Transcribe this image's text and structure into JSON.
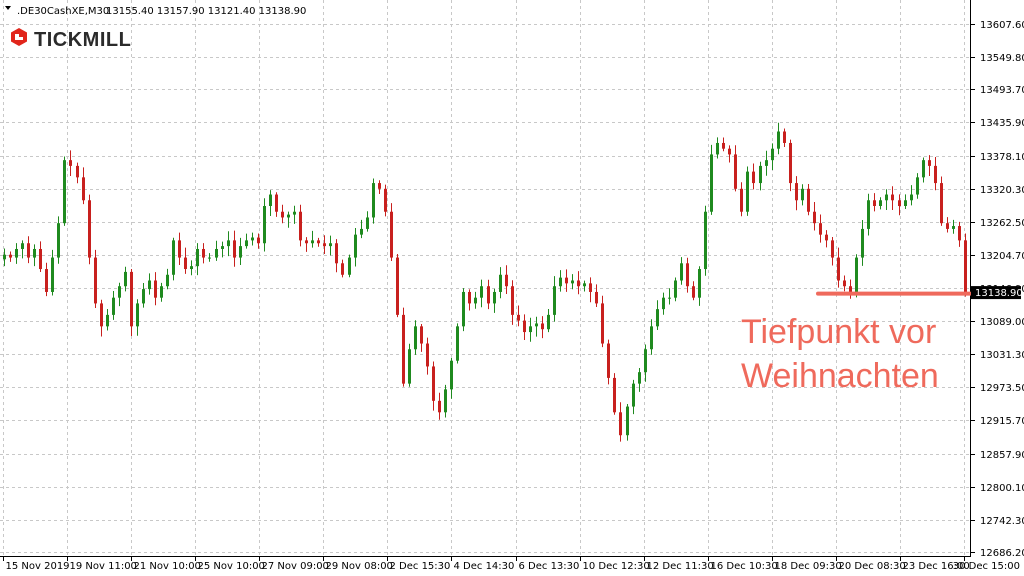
{
  "header": {
    "symbol": ".DE30CashXE,M30",
    "ohlc": "13155.40 13157.90 13121.40 13138.90"
  },
  "brand": {
    "logo_text": "TICKMILL",
    "logo_color": "#e1251b"
  },
  "annotation": {
    "line1": "Tiefpunkt vor",
    "line2": "Weihnachten",
    "color": "#ef6a5c",
    "level": 13138.9
  },
  "current_price": "13138.90",
  "colors": {
    "up": "#1f8a1f",
    "down": "#c8201e",
    "grid": "#c8c8c8",
    "label_bg": "#000000"
  },
  "chart_data": {
    "type": "candlestick",
    "title": "",
    "xlabel": "",
    "ylabel": "",
    "ylim": [
      12686.2,
      13637.0
    ],
    "grid": true,
    "y_ticks": [
      {
        "v": 13607.6,
        "label": "13607.60"
      },
      {
        "v": 13549.8,
        "label": "13549.80"
      },
      {
        "v": 13493.7,
        "label": "13493.70"
      },
      {
        "v": 13435.9,
        "label": "13435.90"
      },
      {
        "v": 13378.1,
        "label": "13378.10"
      },
      {
        "v": 13320.3,
        "label": "13320.30"
      },
      {
        "v": 13262.5,
        "label": "13262.50"
      },
      {
        "v": 13204.7,
        "label": "13204.70"
      },
      {
        "v": 13146.9,
        "label": "13146.90"
      },
      {
        "v": 13089.0,
        "label": "13089.00"
      },
      {
        "v": 13031.3,
        "label": "13031.30"
      },
      {
        "v": 12973.5,
        "label": "12973.50"
      },
      {
        "v": 12915.7,
        "label": "12915.70"
      },
      {
        "v": 12857.9,
        "label": "12857.90"
      },
      {
        "v": 12800.1,
        "label": "12800.10"
      },
      {
        "v": 12742.3,
        "label": "12742.30"
      },
      {
        "v": 12686.2,
        "label": "12686.20"
      }
    ],
    "x_ticks": [
      "15 Nov 2019",
      "19 Nov 11:00",
      "21 Nov 10:00",
      "25 Nov 10:00",
      "27 Nov 09:00",
      "29 Nov 08:00",
      "2 Dec 15:30",
      "4 Dec 14:30",
      "6 Dec 13:30",
      "10 Dec 12:30",
      "12 Dec 11:30",
      "16 Dec 10:30",
      "18 Dec 09:30",
      "20 Dec 08:30",
      "23 Dec 16:00",
      "30 Dec 15:00"
    ],
    "close_path": [
      13205,
      13200,
      13215,
      13225,
      13200,
      13215,
      13180,
      13140,
      13200,
      13260,
      13370,
      13360,
      13340,
      13300,
      13200,
      13120,
      13080,
      13100,
      13130,
      13150,
      13175,
      13080,
      13120,
      13145,
      13160,
      13130,
      13150,
      13170,
      13230,
      13200,
      13180,
      13185,
      13215,
      13200,
      13200,
      13215,
      13220,
      13230,
      13200,
      13220,
      13230,
      13235,
      13225,
      13290,
      13310,
      13280,
      13270,
      13275,
      13280,
      13230,
      13225,
      13230,
      13225,
      13220,
      13225,
      13190,
      13170,
      13200,
      13240,
      13250,
      13270,
      13330,
      13320,
      13280,
      13200,
      13100,
      12980,
      13040,
      13080,
      13050,
      13010,
      12950,
      12930,
      12970,
      13020,
      13080,
      13140,
      13120,
      13130,
      13150,
      13120,
      13140,
      13170,
      13150,
      13100,
      13090,
      13070,
      13080,
      13085,
      13075,
      13100,
      13150,
      13165,
      13155,
      13160,
      13150,
      13155,
      13140,
      13120,
      13050,
      12990,
      12930,
      12890,
      12940,
      12980,
      13000,
      13040,
      13080,
      13110,
      13130,
      13130,
      13160,
      13190,
      13150,
      13130,
      13180,
      13280,
      13380,
      13400,
      13390,
      13380,
      13320,
      13280,
      13350,
      13330,
      13360,
      13370,
      13390,
      13420,
      13400,
      13330,
      13300,
      13320,
      13280,
      13260,
      13240,
      13230,
      13200,
      13160,
      13150,
      13140,
      13200,
      13250,
      13300,
      13290,
      13300,
      13310,
      13300,
      13290,
      13300,
      13310,
      13340,
      13370,
      13360,
      13330,
      13260,
      13250,
      13255,
      13230,
      13138.9
    ]
  }
}
